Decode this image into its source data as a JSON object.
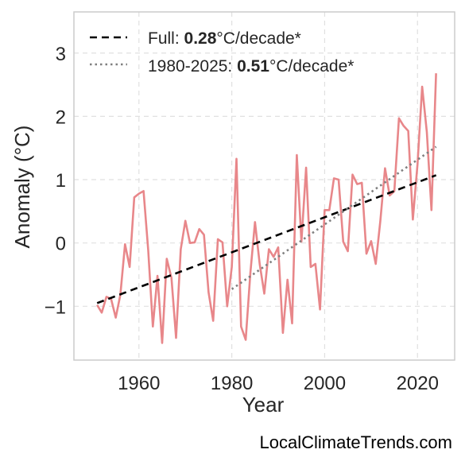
{
  "watermark": "LocalClimateTrends.com",
  "chart_data": {
    "type": "line",
    "title": "",
    "xlabel": "Year",
    "ylabel": "Anomaly (°C)",
    "xlim": [
      1946,
      2028
    ],
    "ylim": [
      -1.85,
      3.65
    ],
    "xticks": [
      1960,
      1980,
      2000,
      2020
    ],
    "yticks": [
      -1,
      0,
      1,
      2,
      3
    ],
    "ytick_labels": [
      "−1",
      "0",
      "1",
      "2",
      "3"
    ],
    "grid": true,
    "legend_position": "top-left",
    "colors": {
      "series": "#e8878a",
      "full_trend": "#000000",
      "recent_trend": "#7f7f7f",
      "grid": "#e0e0e0",
      "axes": "#cccccc"
    },
    "series": [
      {
        "x": [
          1951,
          1952,
          1953,
          1954,
          1955,
          1956,
          1957,
          1958,
          1959,
          1960,
          1961,
          1962,
          1963,
          1964,
          1965,
          1966,
          1967,
          1968,
          1969,
          1970,
          1971,
          1972,
          1973,
          1974,
          1975,
          1976,
          1977,
          1978,
          1979,
          1980,
          1981,
          1982,
          1983,
          1984,
          1985,
          1986,
          1987,
          1988,
          1989,
          1990,
          1991,
          1992,
          1993,
          1994,
          1995,
          1996,
          1997,
          1998,
          1999,
          2000,
          2001,
          2002,
          2003,
          2004,
          2005,
          2006,
          2007,
          2008,
          2009,
          2010,
          2011,
          2012,
          2013,
          2014,
          2015,
          2016,
          2017,
          2018,
          2019,
          2020,
          2021,
          2022,
          2023,
          2024
        ],
        "y": [
          -0.98,
          -1.1,
          -0.85,
          -0.88,
          -1.18,
          -0.82,
          -0.02,
          -0.38,
          0.72,
          0.78,
          0.82,
          -0.12,
          -1.32,
          -0.52,
          -1.58,
          -0.25,
          -0.55,
          -1.5,
          -0.1,
          0.35,
          0.0,
          0.01,
          0.22,
          0.13,
          -0.78,
          -1.23,
          0.06,
          0.01,
          -1.0,
          -0.38,
          1.33,
          -1.32,
          -1.53,
          -0.47,
          0.33,
          -0.33,
          -0.8,
          -0.1,
          -0.22,
          -0.07,
          -1.42,
          -0.58,
          -1.27,
          1.39,
          0.02,
          1.19,
          -0.38,
          -0.33,
          -1.05,
          0.52,
          0.52,
          1.02,
          1.0,
          0.02,
          -0.13,
          1.08,
          0.93,
          0.95,
          -0.17,
          0.03,
          -0.33,
          0.35,
          1.18,
          0.75,
          0.82,
          1.97,
          1.85,
          1.77,
          0.37,
          1.25,
          2.47,
          1.75,
          0.52,
          2.68
        ]
      }
    ],
    "trend_lines": [
      {
        "label_prefix": "Full: ",
        "label_value": "0.28",
        "label_suffix": "°C/decade*",
        "style": "dashed",
        "x": [
          1951,
          2024
        ],
        "y": [
          -0.95,
          1.07
        ]
      },
      {
        "label_prefix": "1980-2025: ",
        "label_value": "0.51",
        "label_suffix": "°C/decade*",
        "style": "dotted",
        "x": [
          1980,
          2024
        ],
        "y": [
          -0.73,
          1.52
        ]
      }
    ]
  }
}
